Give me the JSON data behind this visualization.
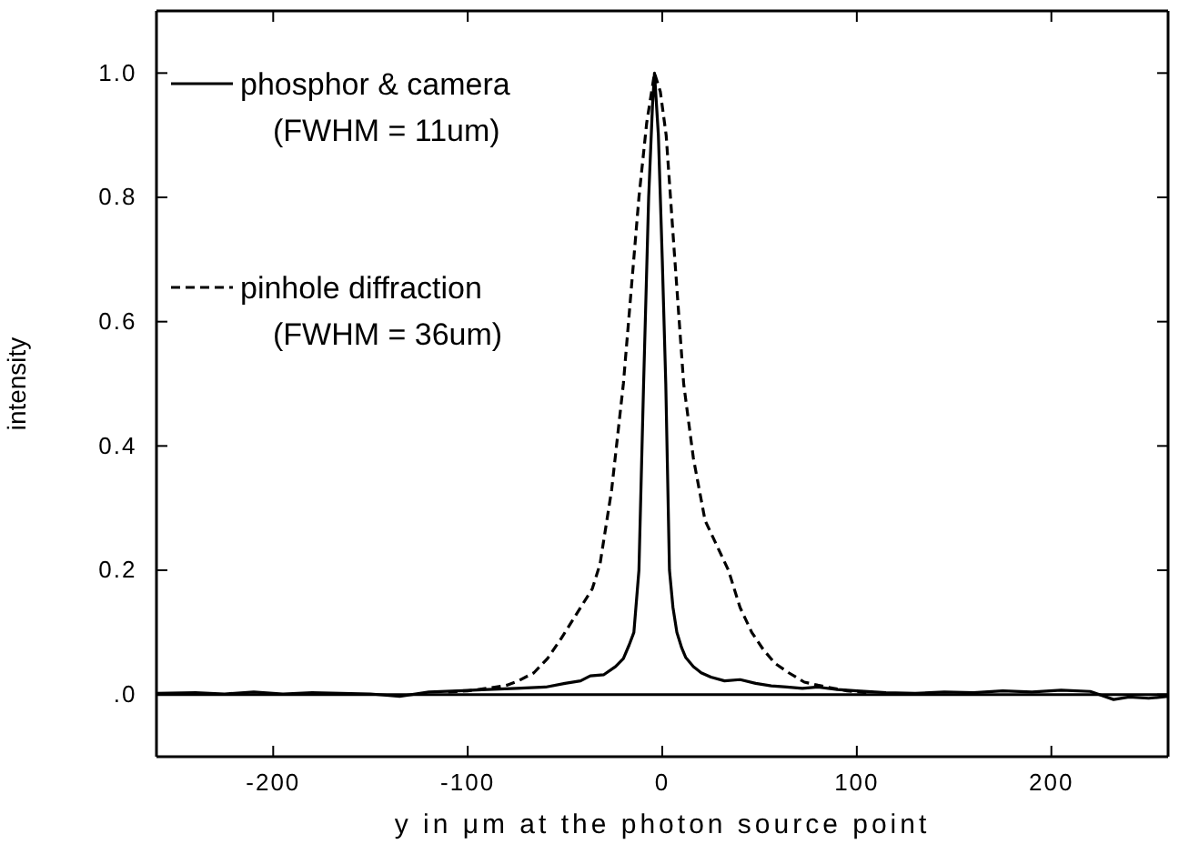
{
  "chart_data": {
    "type": "line",
    "xlabel": "y in μm at the photon source point",
    "ylabel": "intensity",
    "xlim": [
      -260,
      260
    ],
    "ylim": [
      -0.1,
      1.1
    ],
    "xticks": [
      -200,
      -100,
      0,
      100,
      200
    ],
    "yticks": [
      {
        "value": 0,
        "label": ".0"
      },
      {
        "value": 0.2,
        "label": "0.2"
      },
      {
        "value": 0.4,
        "label": "0.4"
      },
      {
        "value": 0.6,
        "label": "0.6"
      },
      {
        "value": 0.8,
        "label": "0.8"
      },
      {
        "value": 1,
        "label": "1.0"
      }
    ],
    "grid": false,
    "legend": "top left",
    "marker": "none",
    "ref_lines": [
      {
        "axis": "y",
        "value": 0,
        "color": "#000000"
      }
    ],
    "series": [
      {
        "name": "phosphor & camera\n(FWHM = 11um)",
        "color": "#000000",
        "line_style": "solid",
        "x": [
          -260,
          -240,
          -225,
          -210,
          -195,
          -180,
          -165,
          -150,
          -135,
          -120,
          -105,
          -90,
          -75,
          -60,
          -50,
          -42,
          -37,
          -30,
          -24,
          -20,
          -17,
          -14.6,
          -12,
          -9.6,
          -7,
          -5,
          -4,
          -2,
          0,
          1.8,
          3.7,
          5.5,
          7.5,
          10,
          12,
          16,
          20,
          25,
          32,
          40,
          48,
          56,
          64,
          72,
          80,
          90,
          100,
          115,
          130,
          145,
          160,
          175,
          190,
          205,
          220,
          232,
          240,
          250,
          260
        ],
        "values": [
          0.002,
          0.003,
          0.001,
          0.004,
          0.001,
          0.003,
          0.002,
          0.001,
          -0.003,
          0.004,
          0.006,
          0.008,
          0.01,
          0.012,
          0.018,
          0.022,
          0.03,
          0.032,
          0.045,
          0.058,
          0.08,
          0.1,
          0.2,
          0.5,
          0.8,
          0.95,
          1.0,
          0.9,
          0.7,
          0.5,
          0.2,
          0.14,
          0.1,
          0.075,
          0.06,
          0.045,
          0.035,
          0.028,
          0.022,
          0.024,
          0.018,
          0.014,
          0.012,
          0.01,
          0.012,
          0.008,
          0.006,
          0.003,
          0.002,
          0.004,
          0.003,
          0.006,
          0.004,
          0.007,
          0.005,
          -0.008,
          -0.004,
          -0.006,
          -0.003
        ]
      },
      {
        "name": "pinhole diffraction\n(FWHM = 36um)",
        "color": "#000000",
        "line_style": "dashed",
        "x": [
          -110,
          -100,
          -90,
          -80,
          -74,
          -66,
          -59,
          -52,
          -44,
          -36,
          -32,
          -26,
          -20,
          -16,
          -12,
          -8,
          -4,
          -1,
          2,
          6,
          11,
          16,
          22,
          28,
          34,
          40,
          46,
          52,
          58,
          65,
          73,
          80,
          88,
          95,
          105
        ],
        "values": [
          0.004,
          0.006,
          0.01,
          0.015,
          0.022,
          0.035,
          0.058,
          0.09,
          0.13,
          0.17,
          0.21,
          0.33,
          0.5,
          0.65,
          0.8,
          0.92,
          1.0,
          0.97,
          0.9,
          0.72,
          0.5,
          0.38,
          0.28,
          0.24,
          0.2,
          0.14,
          0.1,
          0.072,
          0.05,
          0.035,
          0.02,
          0.015,
          0.01,
          0.006,
          0.003
        ]
      }
    ]
  }
}
